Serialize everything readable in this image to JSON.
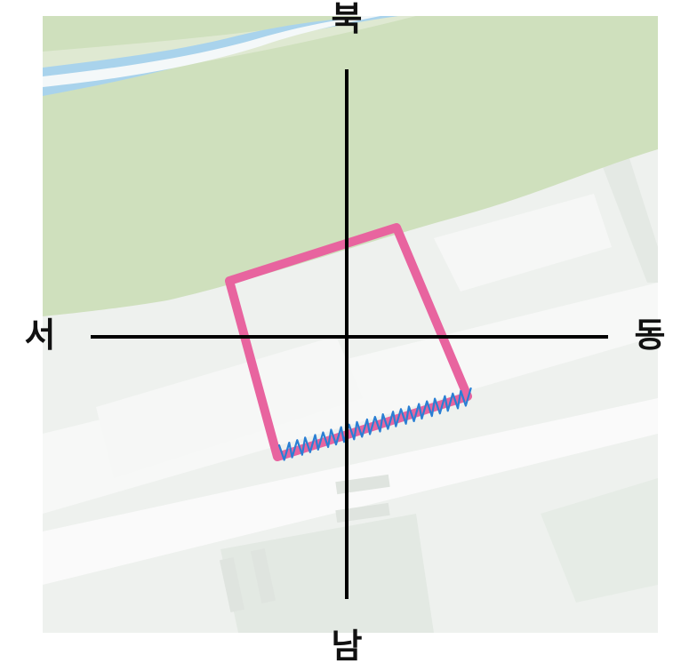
{
  "compass": {
    "north": "북",
    "south": "남",
    "west": "서",
    "east": "동"
  },
  "colors": {
    "parcel_outline": "#e8649f",
    "highlight_scribble": "#2a7fd4",
    "park": "#cfe0bd",
    "water": "#a9d3ec",
    "background": "#eef1ee"
  },
  "icons": {
    "compass": "crosshair-compass",
    "parcel": "parcel-outline",
    "edge": "scribble-highlight"
  }
}
